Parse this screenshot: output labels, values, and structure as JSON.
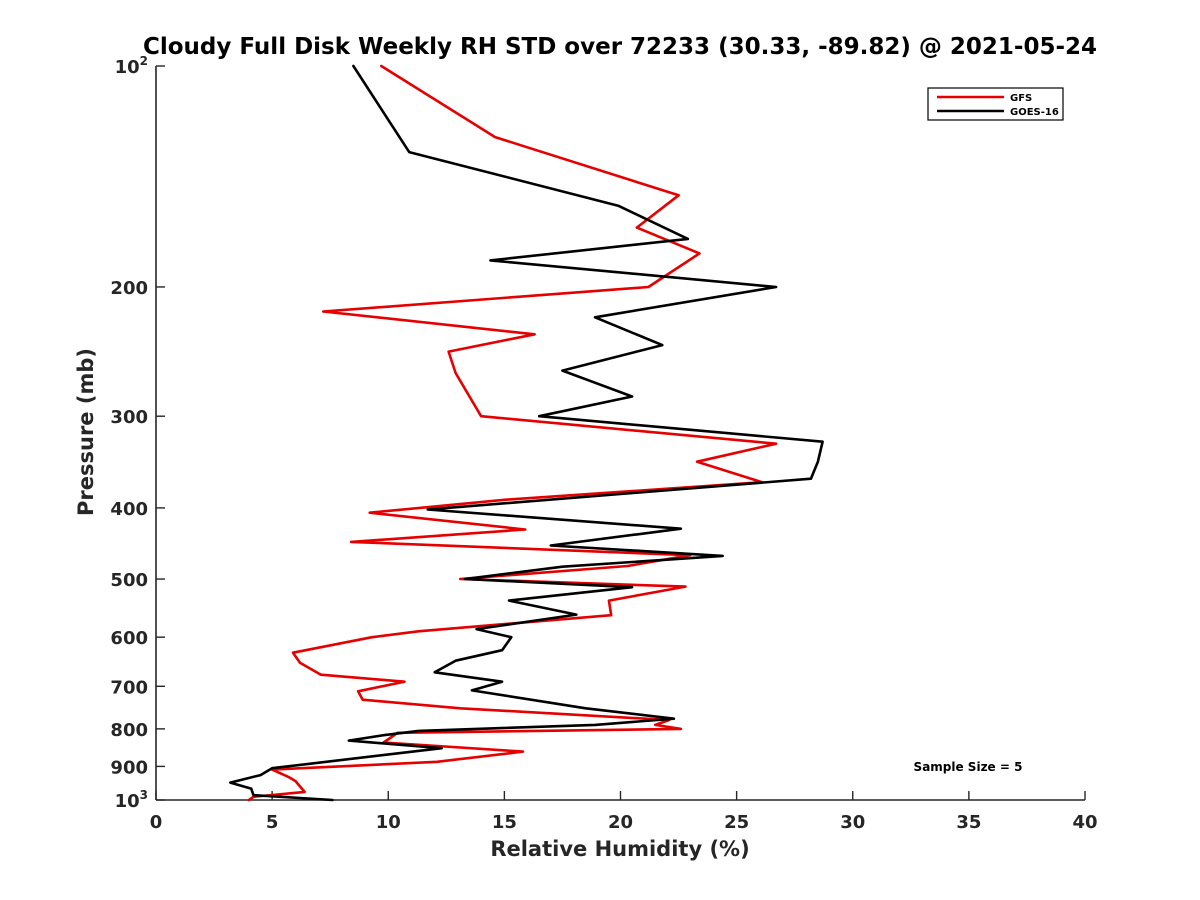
{
  "chart_data": {
    "type": "line",
    "title": "Cloudy Full Disk Weekly RH STD over 72233 (30.33, -89.82) @ 2021-05-24",
    "xlabel": "Relative Humidity (%)",
    "ylabel": "Pressure (mb)",
    "xlim": [
      0,
      40
    ],
    "ylim": [
      100,
      1000
    ],
    "yscale": "log",
    "y_reversed": true,
    "xticks": [
      0,
      5,
      10,
      15,
      20,
      25,
      30,
      35,
      40
    ],
    "yticks": [
      {
        "value": 100,
        "base": "10",
        "exp": "2"
      },
      {
        "value": 200,
        "label": "200"
      },
      {
        "value": 300,
        "label": "300"
      },
      {
        "value": 400,
        "label": "400"
      },
      {
        "value": 500,
        "label": "500"
      },
      {
        "value": 600,
        "label": "600"
      },
      {
        "value": 700,
        "label": "700"
      },
      {
        "value": 800,
        "label": "800"
      },
      {
        "value": 900,
        "label": "900"
      },
      {
        "value": 1000,
        "base": "10",
        "exp": "3"
      }
    ],
    "legend_position": "top-right",
    "annotation": "Sample Size = 5",
    "series": [
      {
        "name": "GFS",
        "color": "#e60000",
        "points": [
          [
            9.7,
            100
          ],
          [
            14.6,
            125
          ],
          [
            22.5,
            150
          ],
          [
            20.7,
            166
          ],
          [
            23.4,
            180
          ],
          [
            21.2,
            200
          ],
          [
            7.2,
            216
          ],
          [
            16.3,
            232
          ],
          [
            12.6,
            245
          ],
          [
            12.9,
            262
          ],
          [
            14.0,
            300
          ],
          [
            26.7,
            327
          ],
          [
            23.3,
            346
          ],
          [
            26.1,
            369
          ],
          [
            15.0,
            390
          ],
          [
            9.2,
            406
          ],
          [
            15.9,
            428
          ],
          [
            8.4,
            445
          ],
          [
            23.0,
            464
          ],
          [
            20.3,
            480
          ],
          [
            13.1,
            500
          ],
          [
            22.8,
            512
          ],
          [
            19.5,
            535
          ],
          [
            19.6,
            560
          ],
          [
            11.3,
            589
          ],
          [
            9.3,
            600
          ],
          [
            5.9,
            630
          ],
          [
            6.2,
            650
          ],
          [
            7.1,
            675
          ],
          [
            10.7,
            690
          ],
          [
            8.7,
            711
          ],
          [
            8.9,
            730
          ],
          [
            13.1,
            750
          ],
          [
            22.1,
            778
          ],
          [
            21.5,
            790
          ],
          [
            22.6,
            800
          ],
          [
            10.4,
            810
          ],
          [
            9.8,
            835
          ],
          [
            15.8,
            859
          ],
          [
            12.1,
            887
          ],
          [
            5.0,
            909
          ],
          [
            5.7,
            930
          ],
          [
            6.0,
            942
          ],
          [
            6.4,
            975
          ],
          [
            4.2,
            990
          ],
          [
            4.0,
            1000
          ]
        ]
      },
      {
        "name": "GOES-16",
        "color": "#000000",
        "points": [
          [
            8.5,
            100
          ],
          [
            10.9,
            131
          ],
          [
            19.9,
            155
          ],
          [
            22.9,
            172
          ],
          [
            14.4,
            184
          ],
          [
            26.7,
            200
          ],
          [
            18.9,
            220
          ],
          [
            21.8,
            240
          ],
          [
            17.5,
            260
          ],
          [
            20.5,
            282
          ],
          [
            16.5,
            300
          ],
          [
            28.7,
            325
          ],
          [
            28.5,
            346
          ],
          [
            28.2,
            365
          ],
          [
            11.7,
            402
          ],
          [
            22.6,
            427
          ],
          [
            17.0,
            450
          ],
          [
            24.4,
            465
          ],
          [
            17.5,
            481
          ],
          [
            13.3,
            500
          ],
          [
            20.5,
            513
          ],
          [
            15.2,
            535
          ],
          [
            18.1,
            559
          ],
          [
            13.8,
            585
          ],
          [
            15.3,
            600
          ],
          [
            14.9,
            625
          ],
          [
            12.9,
            646
          ],
          [
            12.0,
            670
          ],
          [
            14.9,
            690
          ],
          [
            13.6,
            709
          ],
          [
            18.5,
            750
          ],
          [
            22.3,
            775
          ],
          [
            18.9,
            790
          ],
          [
            11.3,
            805
          ],
          [
            9.8,
            816
          ],
          [
            8.3,
            830
          ],
          [
            12.3,
            850
          ],
          [
            5.0,
            905
          ],
          [
            4.5,
            925
          ],
          [
            3.2,
            947
          ],
          [
            4.1,
            965
          ],
          [
            4.2,
            985
          ],
          [
            7.6,
            1000
          ]
        ]
      }
    ]
  }
}
